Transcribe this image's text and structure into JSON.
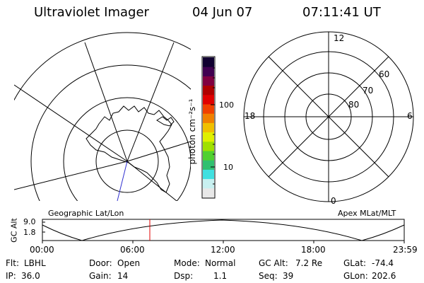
{
  "header": {
    "title": "Ultraviolet Imager",
    "date": "04 Jun 07",
    "time": "07:11:41 UT"
  },
  "left_map": {
    "label": "Geographic Lat/Lon"
  },
  "right_map": {
    "label": "Apex MLat/MLT",
    "mlt_labels": {
      "top": "12",
      "left": "18",
      "right": "6",
      "bottom": "0"
    },
    "lat_labels": [
      "60",
      "70",
      "80"
    ]
  },
  "colorbar": {
    "label": "photon cm⁻²s⁻¹",
    "ticks": [
      "100",
      "10"
    ],
    "scale": "log",
    "colors": [
      "#e8e8e8",
      "#c8f0f0",
      "#40e0e0",
      "#30c070",
      "#50d030",
      "#a0e000",
      "#e0f000",
      "#f0c000",
      "#f08000",
      "#f04000",
      "#e00000",
      "#b00000",
      "#800040",
      "#400050",
      "#100030"
    ]
  },
  "altitude_plot": {
    "ylabel": "GC Alt",
    "yticks": [
      "9.0",
      "1.8"
    ],
    "xticks": [
      "00:00",
      "06:00",
      "12:00",
      "18:00",
      "23:59"
    ],
    "current_time_marker": "07:11"
  },
  "status": {
    "filter_label": "Flt:",
    "filter_value": "LBHL",
    "ip_label": "IP:",
    "ip_value": "36.0",
    "door_label": "Door:",
    "door_value": "Open",
    "gain_label": "Gain:",
    "gain_value": "14",
    "mode_label": "Mode:",
    "mode_value": "Normal",
    "dsp_label": "Dsp:",
    "dsp_value": "1.1",
    "gcalt_label": "GC Alt:",
    "gcalt_value": "7.2 Re",
    "seq_label": "Seq:",
    "seq_value": "39",
    "glat_label": "GLat:",
    "glat_value": "-74.4",
    "glon_label": "GLon:",
    "glon_value": "202.6"
  }
}
